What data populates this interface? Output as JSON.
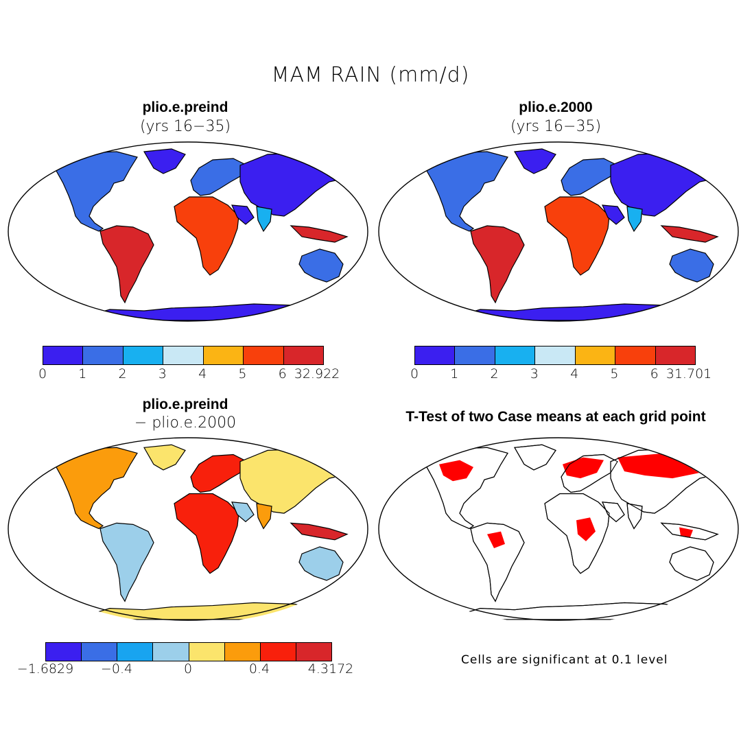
{
  "figure": {
    "title": "MAM RAIN (mm/d)"
  },
  "panels": [
    {
      "title": "plio.e.preind",
      "subtitle": "(yrs 16−35)"
    },
    {
      "title": "plio.e.2000",
      "subtitle": "(yrs 16−35)"
    },
    {
      "title": "plio.e.preind",
      "subtitle": "− plio.e.2000"
    },
    {
      "title": "T-Test of two Case means at each grid point",
      "subtitle": ""
    }
  ],
  "colorbars": [
    {
      "ticks": [
        "0",
        "1",
        "2",
        "3",
        "4",
        "5",
        "6",
        "32.922"
      ],
      "colors": [
        "#3b1ff0",
        "#3a6ee6",
        "#18b0f0",
        "#c9e8f5",
        "#fbb414",
        "#f8400c",
        "#d8262a"
      ]
    },
    {
      "ticks": [
        "0",
        "1",
        "2",
        "3",
        "4",
        "5",
        "6",
        "31.701"
      ],
      "colors": [
        "#3b1ff0",
        "#3a6ee6",
        "#18b0f0",
        "#c9e8f5",
        "#fbb414",
        "#f8400c",
        "#d8262a"
      ]
    },
    {
      "ticks": [
        "−1.6829",
        "−0.4",
        "0",
        "0.4",
        "4.3172"
      ],
      "colors": [
        "#3b1ff0",
        "#3a6ee6",
        "#18a4f0",
        "#9ccfea",
        "#fbe46c",
        "#fb9c0c",
        "#f8200c",
        "#d8262a"
      ]
    }
  ],
  "significance_note": "Cells are significant at 0.1 level",
  "significance_color": "#ff0000",
  "ocean_color": "#ffffff"
}
